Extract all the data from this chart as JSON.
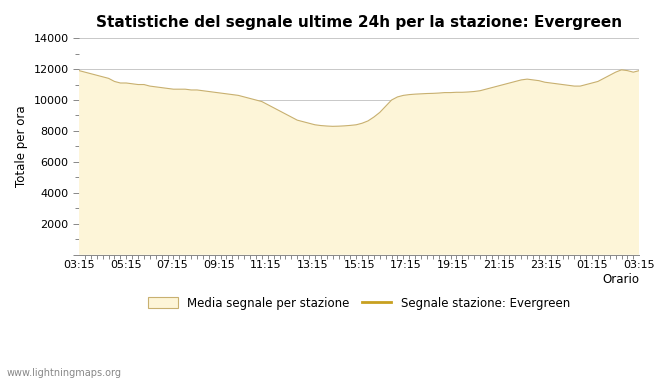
{
  "title": "Statistiche del segnale ultime 24h per la stazione: Evergreen",
  "xlabel": "Orario",
  "ylabel": "Totale per ora",
  "x_ticks": [
    "03:15",
    "05:15",
    "07:15",
    "09:15",
    "11:15",
    "13:15",
    "15:15",
    "17:15",
    "19:15",
    "21:15",
    "23:15",
    "01:15",
    "03:15"
  ],
  "ylim": [
    0,
    14000
  ],
  "yticks": [
    0,
    2000,
    4000,
    6000,
    8000,
    10000,
    12000,
    14000
  ],
  "fill_color": "#fdf5d8",
  "fill_edge_color": "#c8b070",
  "line_color": "#c8a020",
  "background_color": "#ffffff",
  "grid_color": "#c8c8c8",
  "watermark": "www.lightningmaps.org",
  "legend_fill_label": "Media segnale per stazione",
  "legend_line_label": "Segnale stazione: Evergreen",
  "x_values": [
    0,
    1,
    2,
    3,
    4,
    5,
    6,
    7,
    8,
    9,
    10,
    11,
    12,
    13,
    14,
    15,
    16,
    17,
    18,
    19,
    20,
    21,
    22,
    23,
    24,
    25,
    26,
    27,
    28,
    29,
    30,
    31,
    32,
    33,
    34,
    35,
    36,
    37,
    38,
    39,
    40,
    41,
    42,
    43,
    44,
    45,
    46,
    47,
    48,
    49,
    50,
    51,
    52,
    53,
    54,
    55,
    56,
    57,
    58,
    59,
    60,
    61,
    62,
    63,
    64,
    65,
    66,
    67,
    68,
    69,
    70,
    71,
    72,
    73,
    74,
    75,
    76,
    77,
    78,
    79,
    80,
    81,
    82,
    83,
    84,
    85,
    86,
    87,
    88,
    89,
    90,
    91,
    92,
    93,
    94,
    95
  ],
  "y_fill": [
    11900,
    11800,
    11700,
    11600,
    11500,
    11400,
    11200,
    11100,
    11100,
    11050,
    11000,
    11000,
    10900,
    10850,
    10800,
    10750,
    10700,
    10700,
    10700,
    10650,
    10650,
    10600,
    10550,
    10500,
    10450,
    10400,
    10350,
    10300,
    10200,
    10100,
    10000,
    9900,
    9700,
    9500,
    9300,
    9100,
    8900,
    8700,
    8600,
    8500,
    8400,
    8350,
    8320,
    8300,
    8310,
    8330,
    8360,
    8400,
    8500,
    8650,
    8900,
    9200,
    9600,
    10000,
    10200,
    10300,
    10350,
    10380,
    10400,
    10420,
    10430,
    10450,
    10480,
    10480,
    10500,
    10500,
    10520,
    10550,
    10600,
    10700,
    10800,
    10900,
    11000,
    11100,
    11200,
    11300,
    11350,
    11300,
    11250,
    11150,
    11100,
    11050,
    11000,
    10950,
    10900,
    10900,
    11000,
    11100,
    11200,
    11400,
    11600,
    11800,
    11950,
    11900,
    11800,
    11900
  ],
  "y_line": [
    11900,
    11800,
    11700,
    11600,
    11500,
    11400,
    11200,
    11100,
    11100,
    11050,
    11000,
    11000,
    10900,
    10850,
    10800,
    10750,
    10700,
    10700,
    10700,
    10650,
    10650,
    10600,
    10550,
    10500,
    10450,
    10400,
    10350,
    10300,
    10200,
    10100,
    10000,
    9900,
    9700,
    9500,
    9300,
    9100,
    8900,
    8700,
    8600,
    8500,
    8400,
    8350,
    8320,
    8300,
    8310,
    8330,
    8360,
    8400,
    8500,
    8650,
    8900,
    9200,
    9600,
    10000,
    10200,
    10300,
    10350,
    10380,
    10400,
    10420,
    10430,
    10450,
    10480,
    10480,
    10500,
    10500,
    10520,
    10550,
    10600,
    10700,
    10800,
    10900,
    11000,
    11100,
    11200,
    11300,
    11350,
    11300,
    11250,
    11150,
    11100,
    11050,
    11000,
    10950,
    10900,
    10900,
    11000,
    11100,
    11200,
    11400,
    11600,
    11800,
    11950,
    11900,
    11800,
    11900
  ]
}
